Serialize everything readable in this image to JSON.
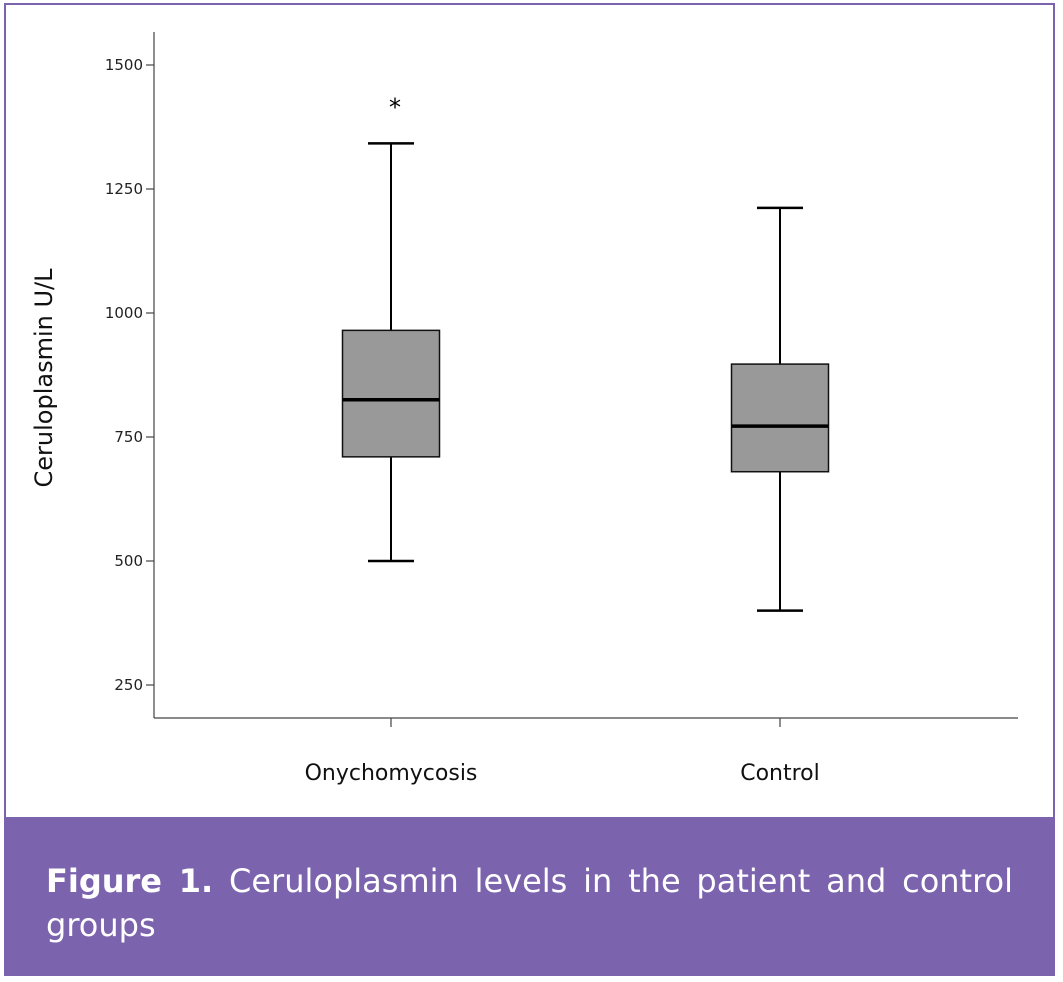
{
  "chart_data": {
    "type": "box",
    "ylabel": "Ceruloplasmin U/L",
    "xlabel": "",
    "ylim": [
      180,
      1565
    ],
    "yticks": [
      250,
      500,
      750,
      1000,
      1250,
      1500
    ],
    "grid": false,
    "groups": [
      {
        "category": "Onychomycosis",
        "whisker_low": 500,
        "q1": 710,
        "median": 825,
        "q3": 965,
        "whisker_high": 1342,
        "outlier_marks": [
          {
            "value": 1430,
            "symbol": "*"
          }
        ]
      },
      {
        "category": "Control",
        "whisker_low": 400,
        "q1": 680,
        "median": 772,
        "q3": 897,
        "whisker_high": 1212,
        "outlier_marks": []
      }
    ]
  },
  "caption": {
    "label": "Figure 1.",
    "text": "Ceruloplasmin levels in the patient and control groups"
  },
  "colors": {
    "box_fill": "#999999",
    "frame": "#7b63ad",
    "caption_bg": "#7b63ad",
    "line": "#000000"
  }
}
